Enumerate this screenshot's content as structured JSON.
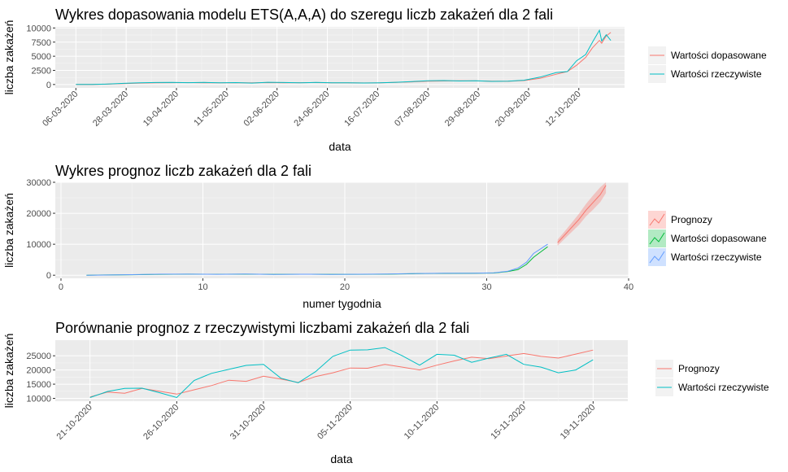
{
  "chart_data": [
    {
      "type": "line",
      "title": "Wykres dopasowania modelu ETS(A,A,A) do szeregu liczb zakażeń dla 2 fali",
      "xlabel": "data",
      "ylabel": "liczba zakażeń",
      "x_tick_labels": [
        "06-03-2020",
        "28-03-2020",
        "19-04-2020",
        "11-05-2020",
        "02-06-2020",
        "24-06-2020",
        "16-07-2020",
        "07-08-2020",
        "29-08-2020",
        "20-09-2020",
        "12-10-2020"
      ],
      "y_tick_labels": [
        "0",
        "2500",
        "5000",
        "7500",
        "10000"
      ],
      "ylim": [
        -600,
        10200
      ],
      "legend_position": "right",
      "grid": true,
      "x": [
        "2020-03-06",
        "2020-03-13",
        "2020-03-20",
        "2020-03-27",
        "2020-04-03",
        "2020-04-10",
        "2020-04-17",
        "2020-04-24",
        "2020-05-01",
        "2020-05-08",
        "2020-05-15",
        "2020-05-22",
        "2020-05-29",
        "2020-06-05",
        "2020-06-12",
        "2020-06-19",
        "2020-06-26",
        "2020-07-03",
        "2020-07-10",
        "2020-07-17",
        "2020-07-24",
        "2020-07-31",
        "2020-08-07",
        "2020-08-14",
        "2020-08-21",
        "2020-08-28",
        "2020-09-04",
        "2020-09-11",
        "2020-09-18",
        "2020-09-25",
        "2020-10-02",
        "2020-10-07",
        "2020-10-11",
        "2020-10-15",
        "2020-10-18",
        "2020-10-21",
        "2020-10-22",
        "2020-10-24",
        "2020-10-26"
      ],
      "series": [
        {
          "name": "Wartości dopasowane",
          "color": "#F8766D",
          "values": [
            0,
            20,
            60,
            150,
            250,
            300,
            320,
            330,
            310,
            300,
            290,
            310,
            330,
            300,
            320,
            330,
            310,
            290,
            280,
            300,
            380,
            460,
            580,
            620,
            650,
            640,
            580,
            570,
            690,
            1100,
            1800,
            2300,
            3400,
            4800,
            6500,
            7800,
            7300,
            8600,
            9200
          ]
        },
        {
          "name": "Wartości rzeczywiste",
          "color": "#00BFC4",
          "values": [
            0,
            10,
            70,
            200,
            300,
            350,
            380,
            320,
            360,
            300,
            340,
            250,
            400,
            350,
            300,
            370,
            290,
            300,
            260,
            310,
            400,
            520,
            650,
            700,
            620,
            650,
            550,
            600,
            750,
            1300,
            2100,
            2300,
            4200,
            5300,
            7500,
            9600,
            7700,
            8800,
            7800
          ]
        }
      ]
    },
    {
      "type": "line",
      "title": "Wykres prognoz liczb zakażeń dla 2 fali",
      "xlabel": "numer tygodnia",
      "ylabel": "liczba zakażeń",
      "x_tick_labels": [
        "0",
        "10",
        "20",
        "30",
        "40"
      ],
      "y_tick_labels": [
        "0",
        "10000",
        "20000",
        "30000"
      ],
      "xlim": [
        0,
        40
      ],
      "ylim": [
        -1000,
        30000
      ],
      "legend_position": "right",
      "grid": true,
      "series": [
        {
          "name": "Prognozy",
          "color": "#F8766D",
          "ribbon": true,
          "x": [
            35.0,
            35.5,
            36.0,
            36.5,
            37.0,
            37.5,
            38.0,
            38.4
          ],
          "values": [
            10500,
            13000,
            15500,
            18000,
            21000,
            23500,
            26000,
            29000
          ],
          "lower": [
            9500,
            11800,
            14000,
            16200,
            19000,
            21200,
            23600,
            26500
          ],
          "upper": [
            11500,
            14200,
            17000,
            19800,
            23000,
            25800,
            28400,
            30000
          ]
        },
        {
          "name": "Wartości dopasowane",
          "color": "#00BA38",
          "x": [
            1.8,
            3,
            5,
            7,
            9,
            11,
            13,
            15,
            17,
            19,
            21,
            23,
            25,
            27,
            29,
            30.5,
            31.5,
            32.2,
            32.8,
            33.3,
            33.8,
            34.3
          ],
          "values": [
            0,
            80,
            150,
            300,
            350,
            320,
            330,
            300,
            310,
            290,
            300,
            350,
            500,
            600,
            650,
            700,
            1200,
            1800,
            3500,
            5800,
            7500,
            9200
          ]
        },
        {
          "name": "Wartości rzeczywiste",
          "color": "#619CFF",
          "x": [
            1.8,
            3,
            5,
            7,
            9,
            11,
            13,
            15,
            17,
            19,
            21,
            23,
            25,
            27,
            29,
            30.5,
            31.5,
            32.2,
            32.8,
            33.3,
            33.8,
            34.3
          ],
          "values": [
            0,
            60,
            180,
            350,
            330,
            300,
            360,
            260,
            320,
            270,
            320,
            380,
            560,
            650,
            620,
            750,
            1300,
            2300,
            4200,
            7000,
            8500,
            10000
          ]
        }
      ]
    },
    {
      "type": "line",
      "title": "Porównanie prognoz z rzeczywistymi liczbami zakażeń dla 2 fali",
      "xlabel": "data",
      "ylabel": "liczba zakażeń",
      "x_tick_labels": [
        "21-10-2020",
        "26-10-2020",
        "31-10-2020",
        "05-11-2020",
        "10-11-2020",
        "15-11-2020",
        "19-11-2020"
      ],
      "y_tick_labels": [
        "10000",
        "15000",
        "20000",
        "25000"
      ],
      "ylim": [
        9000,
        30500
      ],
      "legend_position": "right",
      "grid": true,
      "x": [
        "2020-10-21",
        "2020-10-22",
        "2020-10-23",
        "2020-10-24",
        "2020-10-25",
        "2020-10-26",
        "2020-10-27",
        "2020-10-28",
        "2020-10-29",
        "2020-10-30",
        "2020-10-31",
        "2020-11-01",
        "2020-11-02",
        "2020-11-03",
        "2020-11-04",
        "2020-11-05",
        "2020-11-06",
        "2020-11-07",
        "2020-11-08",
        "2020-11-09",
        "2020-11-10",
        "2020-11-11",
        "2020-11-12",
        "2020-11-13",
        "2020-11-14",
        "2020-11-15",
        "2020-11-16",
        "2020-11-17",
        "2020-11-18",
        "2020-11-19"
      ],
      "series": [
        {
          "name": "Prognozy",
          "color": "#F8766D",
          "values": [
            10500,
            12200,
            11800,
            13500,
            12500,
            11500,
            13000,
            14500,
            16400,
            16000,
            17800,
            16800,
            15600,
            17700,
            19000,
            20700,
            20600,
            22000,
            21000,
            20000,
            21700,
            23200,
            24500,
            24000,
            24900,
            25800,
            24800,
            24200,
            25600,
            27000
          ]
        },
        {
          "name": "Wartości rzeczywiste",
          "color": "#00BFC4",
          "values": [
            10300,
            12400,
            13500,
            13600,
            12000,
            10300,
            16300,
            18800,
            20200,
            21600,
            22000,
            17100,
            15500,
            19400,
            24800,
            27000,
            27100,
            27900,
            25000,
            21700,
            25500,
            25200,
            22700,
            24200,
            25500,
            22000,
            21000,
            19000,
            20000,
            23600
          ]
        }
      ]
    }
  ]
}
